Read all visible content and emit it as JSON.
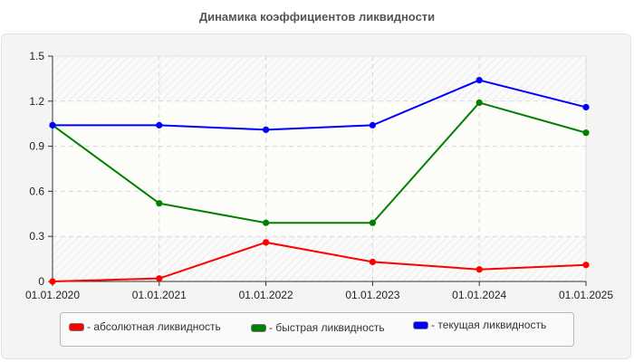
{
  "title": "Динамика коэффициентов ликвидности",
  "chart_data": {
    "type": "line",
    "title": "Динамика коэффициентов ликвидности",
    "xlabel": "",
    "ylabel": "",
    "x": [
      "01.01.2020",
      "01.01.2021",
      "01.01.2022",
      "01.01.2023",
      "01.01.2024",
      "01.01.2025"
    ],
    "yticks": [
      "0",
      "0.3",
      "0.6",
      "0.9",
      "1.2",
      "1.5"
    ],
    "ylim": [
      0,
      1.5
    ],
    "grid": true,
    "legend_position": "bottom",
    "series": [
      {
        "name": "- абсолютная ликвидность",
        "color": "#ff0000",
        "values": [
          0.0,
          0.02,
          0.26,
          0.13,
          0.08,
          0.11
        ]
      },
      {
        "name": "- быстрая ликвидность",
        "color": "#008000",
        "values": [
          1.04,
          0.52,
          0.39,
          0.39,
          1.19,
          0.99
        ]
      },
      {
        "name": "- текущая ликвидность",
        "color": "#0000ff",
        "values": [
          1.04,
          1.04,
          1.01,
          1.04,
          1.34,
          1.16
        ]
      }
    ]
  },
  "legend": {
    "items": [
      {
        "label": "- абсолютная ликвидность",
        "color": "#ff0000"
      },
      {
        "label": "- быстрая ликвидность",
        "color": "#008000"
      },
      {
        "label": "- текущая ликвидность",
        "color": "#0000ff"
      }
    ]
  }
}
